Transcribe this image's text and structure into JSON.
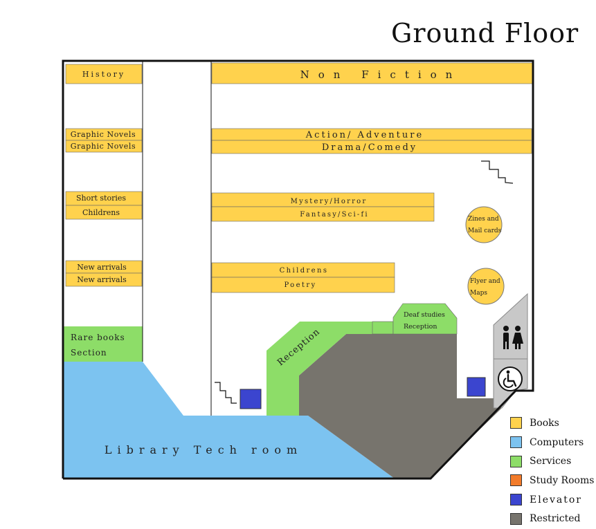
{
  "title": "Ground Floor",
  "colors": {
    "books": "#ffd24d",
    "computers": "#7cc3f0",
    "services": "#8ddd68",
    "study_rooms": "#f27b2a",
    "elevator": "#3b45cf",
    "restricted": "#77746d",
    "restroom": "#c8c8c8"
  },
  "shelves": {
    "history": "History",
    "non_fiction": "Non Fiction",
    "graphic_novels_1": "Graphic Novels",
    "graphic_novels_2": "Graphic Novels",
    "action_adventure": "Action/ Adventure",
    "drama_comedy": "Drama/Comedy",
    "short_stories": "Short stories",
    "childrens_left": "Childrens",
    "mystery_horror": "Mystery/Horror",
    "fantasy_scifi": "Fantasy/Sci-fi",
    "new_arrivals_1": "New arrivals",
    "new_arrivals_2": "New arrivals",
    "childrens_center": "Childrens",
    "poetry": "Poetry"
  },
  "rooms": {
    "rare_books_line1": "Rare books",
    "rare_books_line2": "Section",
    "tech_room": "Library Tech room",
    "reception": "Reception",
    "deaf_studies_line1": "Deaf studies",
    "deaf_studies_line2": "Reception",
    "zines_line1": "Zines and",
    "zines_line2": "Mail cards",
    "flyer_line1": "Flyer and",
    "flyer_line2": "Maps"
  },
  "icons": {
    "restroom": "restroom-icon",
    "accessible": "wheelchair-icon",
    "stairs": "stairs-icon"
  },
  "legend": [
    {
      "label": "Books",
      "color": "#ffd24d"
    },
    {
      "label": "Computers",
      "color": "#7cc3f0"
    },
    {
      "label": "Services",
      "color": "#8ddd68"
    },
    {
      "label": "Study Rooms",
      "color": "#f27b2a"
    },
    {
      "label": "Elevator",
      "color": "#3b45cf"
    },
    {
      "label": "Restricted",
      "color": "#77746d"
    }
  ]
}
